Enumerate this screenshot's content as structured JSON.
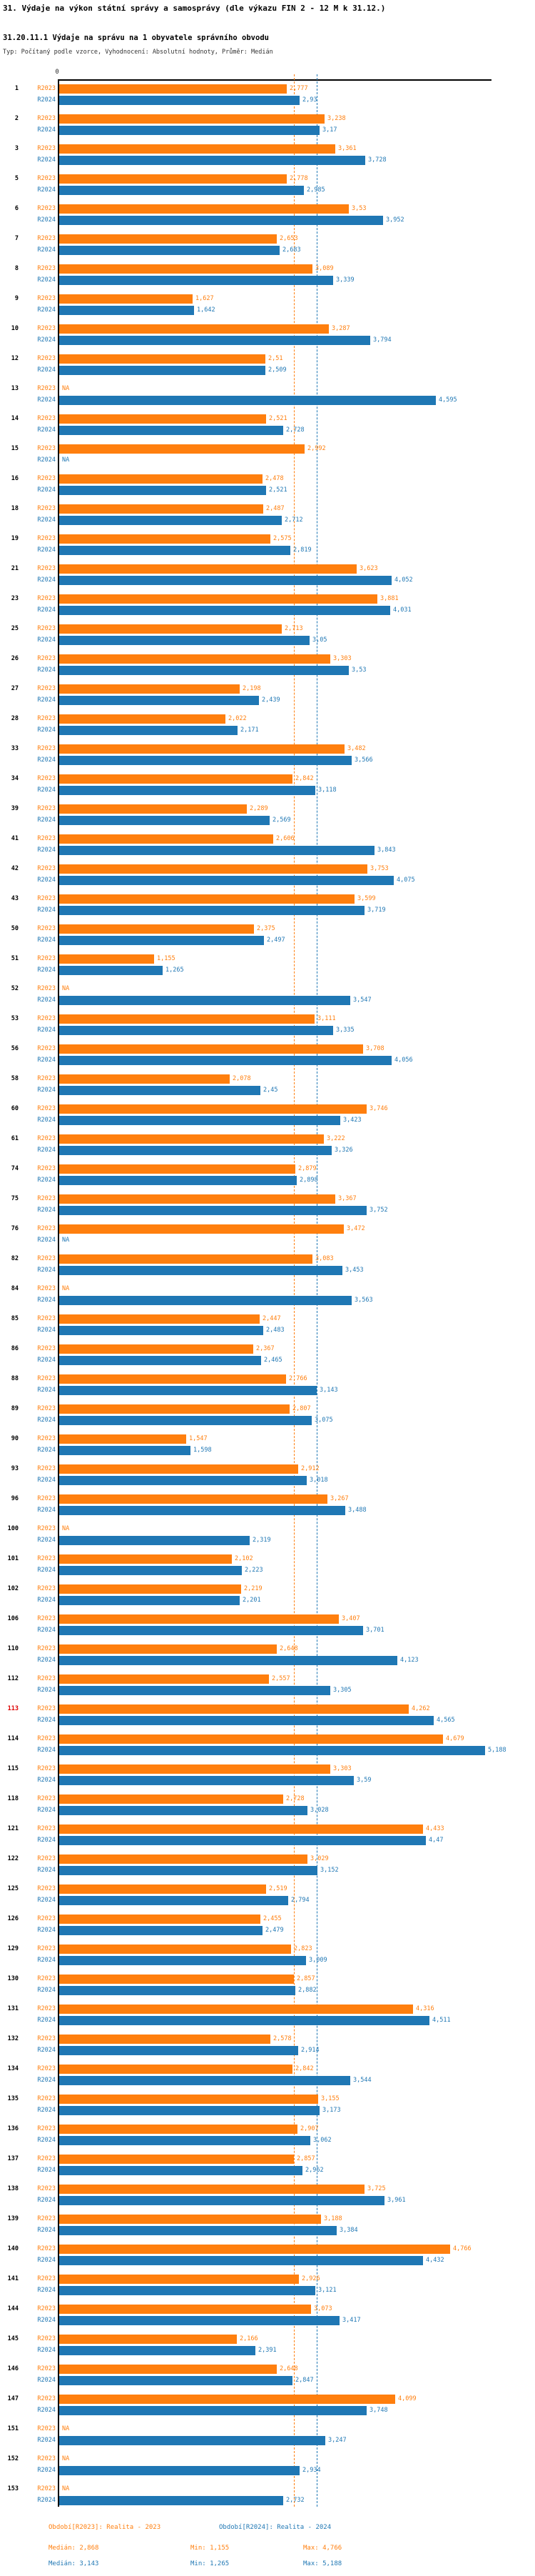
{
  "header": {
    "title": "31. Výdaje na výkon státní správy a samosprávy (dle výkazu FIN 2 - 12 M k 31.12.)",
    "subtitle": "31.20.11.1 Výdaje na správu na 1 obyvatele správního obvodu",
    "meta": "Typ: Počítaný podle vzorce, Vyhodnocení: Absolutní hodnoty, Průměr: Medián"
  },
  "chart_data": {
    "type": "bar",
    "orientation": "horizontal",
    "series_labels": [
      "R2023",
      "R2024"
    ],
    "colors": {
      "R2023": "#FF7F0E",
      "R2024": "#1F77B4",
      "highlight_label": "#DD0000"
    },
    "value_axis": {
      "zero_label": "0",
      "min": 0,
      "implied_max": 5.3,
      "grid": false
    },
    "na_label": "NA",
    "legend_position": "bottom",
    "highlight_category": "113",
    "medians": {
      "R2023": "2,868",
      "R2024": "3,143"
    },
    "groups": [
      {
        "id": "1",
        "r23": "2,777",
        "r24": "2,93"
      },
      {
        "id": "2",
        "r23": "3,238",
        "r24": "3,17"
      },
      {
        "id": "3",
        "r23": "3,361",
        "r24": "3,728"
      },
      {
        "id": "5",
        "r23": "2,778",
        "r24": "2,985"
      },
      {
        "id": "6",
        "r23": "3,53",
        "r24": "3,952"
      },
      {
        "id": "7",
        "r23": "2,653",
        "r24": "2,683"
      },
      {
        "id": "8",
        "r23": "3,089",
        "r24": "3,339"
      },
      {
        "id": "9",
        "r23": "1,627",
        "r24": "1,642"
      },
      {
        "id": "10",
        "r23": "3,287",
        "r24": "3,794"
      },
      {
        "id": "12",
        "r23": "2,51",
        "r24": "2,509"
      },
      {
        "id": "13",
        "r23": "NA",
        "r24": "4,595"
      },
      {
        "id": "14",
        "r23": "2,521",
        "r24": "2,728"
      },
      {
        "id": "15",
        "r23": "2,992",
        "r24": "NA"
      },
      {
        "id": "16",
        "r23": "2,478",
        "r24": "2,521"
      },
      {
        "id": "18",
        "r23": "2,487",
        "r24": "2,712"
      },
      {
        "id": "19",
        "r23": "2,575",
        "r24": "2,819"
      },
      {
        "id": "21",
        "r23": "3,623",
        "r24": "4,052"
      },
      {
        "id": "23",
        "r23": "3,881",
        "r24": "4,031"
      },
      {
        "id": "25",
        "r23": "2,713",
        "r24": "3,05"
      },
      {
        "id": "26",
        "r23": "3,303",
        "r24": "3,53"
      },
      {
        "id": "27",
        "r23": "2,198",
        "r24": "2,439"
      },
      {
        "id": "28",
        "r23": "2,022",
        "r24": "2,171"
      },
      {
        "id": "33",
        "r23": "3,482",
        "r24": "3,566"
      },
      {
        "id": "34",
        "r23": "2,842",
        "r24": "3,118"
      },
      {
        "id": "39",
        "r23": "2,289",
        "r24": "2,569"
      },
      {
        "id": "41",
        "r23": "2,606",
        "r24": "3,843"
      },
      {
        "id": "42",
        "r23": "3,753",
        "r24": "4,075"
      },
      {
        "id": "43",
        "r23": "3,599",
        "r24": "3,719"
      },
      {
        "id": "50",
        "r23": "2,375",
        "r24": "2,497"
      },
      {
        "id": "51",
        "r23": "1,155",
        "r24": "1,265"
      },
      {
        "id": "52",
        "r23": "NA",
        "r24": "3,547"
      },
      {
        "id": "53",
        "r23": "3,111",
        "r24": "3,335"
      },
      {
        "id": "56",
        "r23": "3,708",
        "r24": "4,056"
      },
      {
        "id": "58",
        "r23": "2,078",
        "r24": "2,45"
      },
      {
        "id": "60",
        "r23": "3,746",
        "r24": "3,423"
      },
      {
        "id": "61",
        "r23": "3,222",
        "r24": "3,326"
      },
      {
        "id": "74",
        "r23": "2,879",
        "r24": "2,898"
      },
      {
        "id": "75",
        "r23": "3,367",
        "r24": "3,752"
      },
      {
        "id": "76",
        "r23": "3,472",
        "r24": "NA"
      },
      {
        "id": "82",
        "r23": "3,083",
        "r24": "3,453"
      },
      {
        "id": "84",
        "r23": "NA",
        "r24": "3,563"
      },
      {
        "id": "85",
        "r23": "2,447",
        "r24": "2,483"
      },
      {
        "id": "86",
        "r23": "2,367",
        "r24": "2,465"
      },
      {
        "id": "88",
        "r23": "2,766",
        "r24": "3,143"
      },
      {
        "id": "89",
        "r23": "2,807",
        "r24": "3,075"
      },
      {
        "id": "90",
        "r23": "1,547",
        "r24": "1,598"
      },
      {
        "id": "93",
        "r23": "2,912",
        "r24": "3,018"
      },
      {
        "id": "96",
        "r23": "3,267",
        "r24": "3,488"
      },
      {
        "id": "100",
        "r23": "NA",
        "r24": "2,319"
      },
      {
        "id": "101",
        "r23": "2,102",
        "r24": "2,223"
      },
      {
        "id": "102",
        "r23": "2,219",
        "r24": "2,201"
      },
      {
        "id": "106",
        "r23": "3,407",
        "r24": "3,701"
      },
      {
        "id": "110",
        "r23": "2,648",
        "r24": "4,123"
      },
      {
        "id": "112",
        "r23": "2,557",
        "r24": "3,305"
      },
      {
        "id": "113",
        "r23": "4,262",
        "r24": "4,565",
        "hl": true
      },
      {
        "id": "114",
        "r23": "4,679",
        "r24": "5,188"
      },
      {
        "id": "115",
        "r23": "3,303",
        "r24": "3,59"
      },
      {
        "id": "118",
        "r23": "2,728",
        "r24": "3,028"
      },
      {
        "id": "121",
        "r23": "4,433",
        "r24": "4,47"
      },
      {
        "id": "122",
        "r23": "3,029",
        "r24": "3,152"
      },
      {
        "id": "125",
        "r23": "2,519",
        "r24": "2,794"
      },
      {
        "id": "126",
        "r23": "2,455",
        "r24": "2,479"
      },
      {
        "id": "129",
        "r23": "2,823",
        "r24": "3,009"
      },
      {
        "id": "130",
        "r23": "2,857",
        "r24": "2,882"
      },
      {
        "id": "131",
        "r23": "4,316",
        "r24": "4,511"
      },
      {
        "id": "132",
        "r23": "2,578",
        "r24": "2,914"
      },
      {
        "id": "134",
        "r23": "2,842",
        "r24": "3,544"
      },
      {
        "id": "135",
        "r23": "3,155",
        "r24": "3,173"
      },
      {
        "id": "136",
        "r23": "2,907",
        "r24": "3,062"
      },
      {
        "id": "137",
        "r23": "2,857",
        "r24": "2,962"
      },
      {
        "id": "138",
        "r23": "3,725",
        "r24": "3,961"
      },
      {
        "id": "139",
        "r23": "3,188",
        "r24": "3,384"
      },
      {
        "id": "140",
        "r23": "4,766",
        "r24": "4,432"
      },
      {
        "id": "141",
        "r23": "2,926",
        "r24": "3,121"
      },
      {
        "id": "144",
        "r23": "3,073",
        "r24": "3,417"
      },
      {
        "id": "145",
        "r23": "2,166",
        "r24": "2,391"
      },
      {
        "id": "146",
        "r23": "2,648",
        "r24": "2,847"
      },
      {
        "id": "147",
        "r23": "4,099",
        "r24": "3,748"
      },
      {
        "id": "151",
        "r23": "NA",
        "r24": "3,247"
      },
      {
        "id": "152",
        "r23": "NA",
        "r24": "2,934"
      },
      {
        "id": "153",
        "r23": "NA",
        "r24": "2,732"
      }
    ]
  },
  "footer": {
    "legend_r2023": "Období[R2023]: Realita - 2023",
    "legend_r2024": "Období[R2024]: Realita - 2024",
    "r2023_stats": {
      "median": "Medián: 2,868",
      "min": "Min: 1,155",
      "max": "Max: 4,766"
    },
    "r2024_stats": {
      "median": "Medián: 3,143",
      "min": "Min: 1,265",
      "max": "Max: 5,188"
    }
  }
}
